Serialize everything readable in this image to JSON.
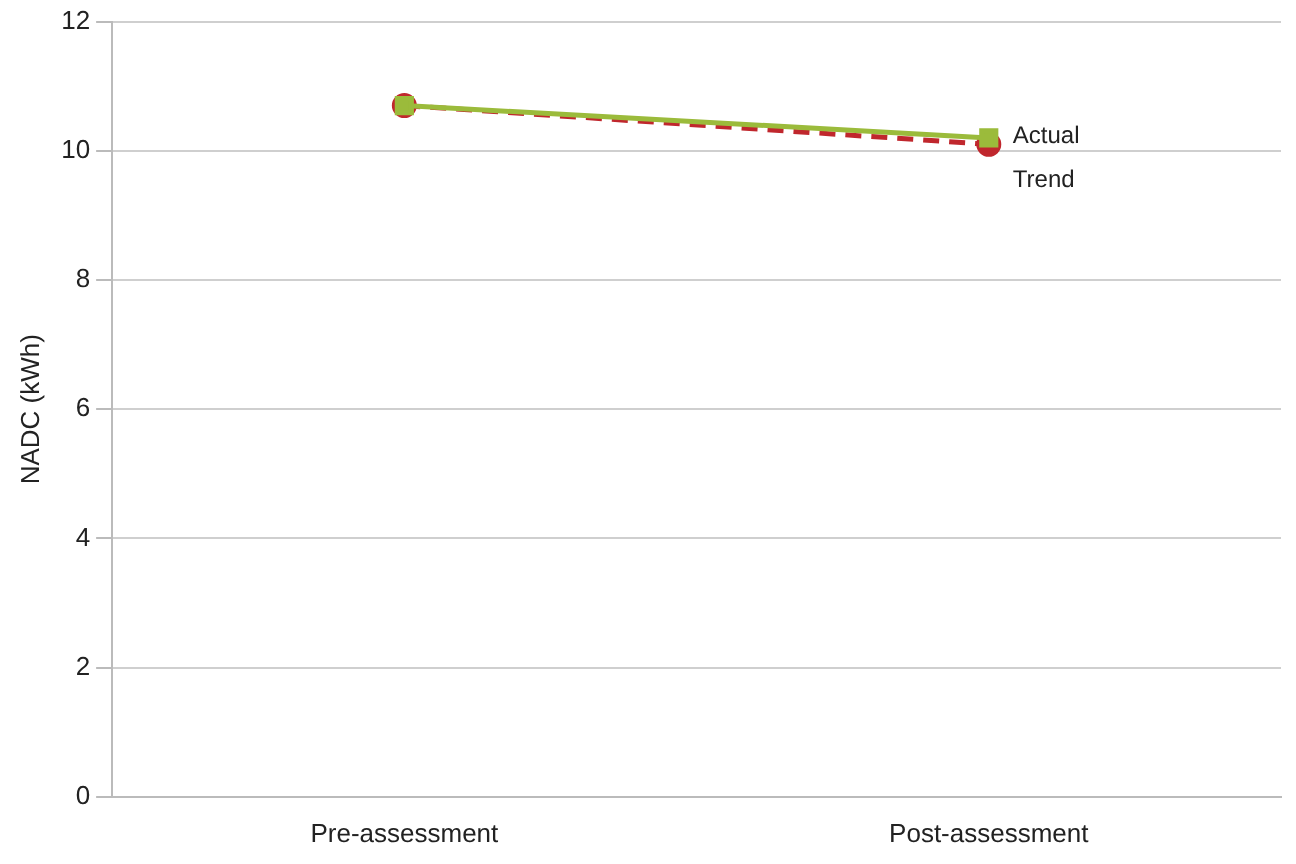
{
  "chart_data": {
    "type": "line",
    "ylabel": "NADC (kWh)",
    "categories": [
      "Pre-assessment",
      "Post-assessment"
    ],
    "series": [
      {
        "name": "Actual",
        "color": "#9bbb3b",
        "values": [
          10.7,
          10.2
        ],
        "line_style": "solid",
        "marker": "square"
      },
      {
        "name": "Trend",
        "color": "#c0272d",
        "values": [
          10.7,
          10.1
        ],
        "line_style": "dashed",
        "marker": "circle"
      }
    ],
    "ylim": [
      0,
      12
    ],
    "yticks": [
      0,
      2,
      4,
      6,
      8,
      10,
      12
    ],
    "grid": "y",
    "legend": false
  }
}
